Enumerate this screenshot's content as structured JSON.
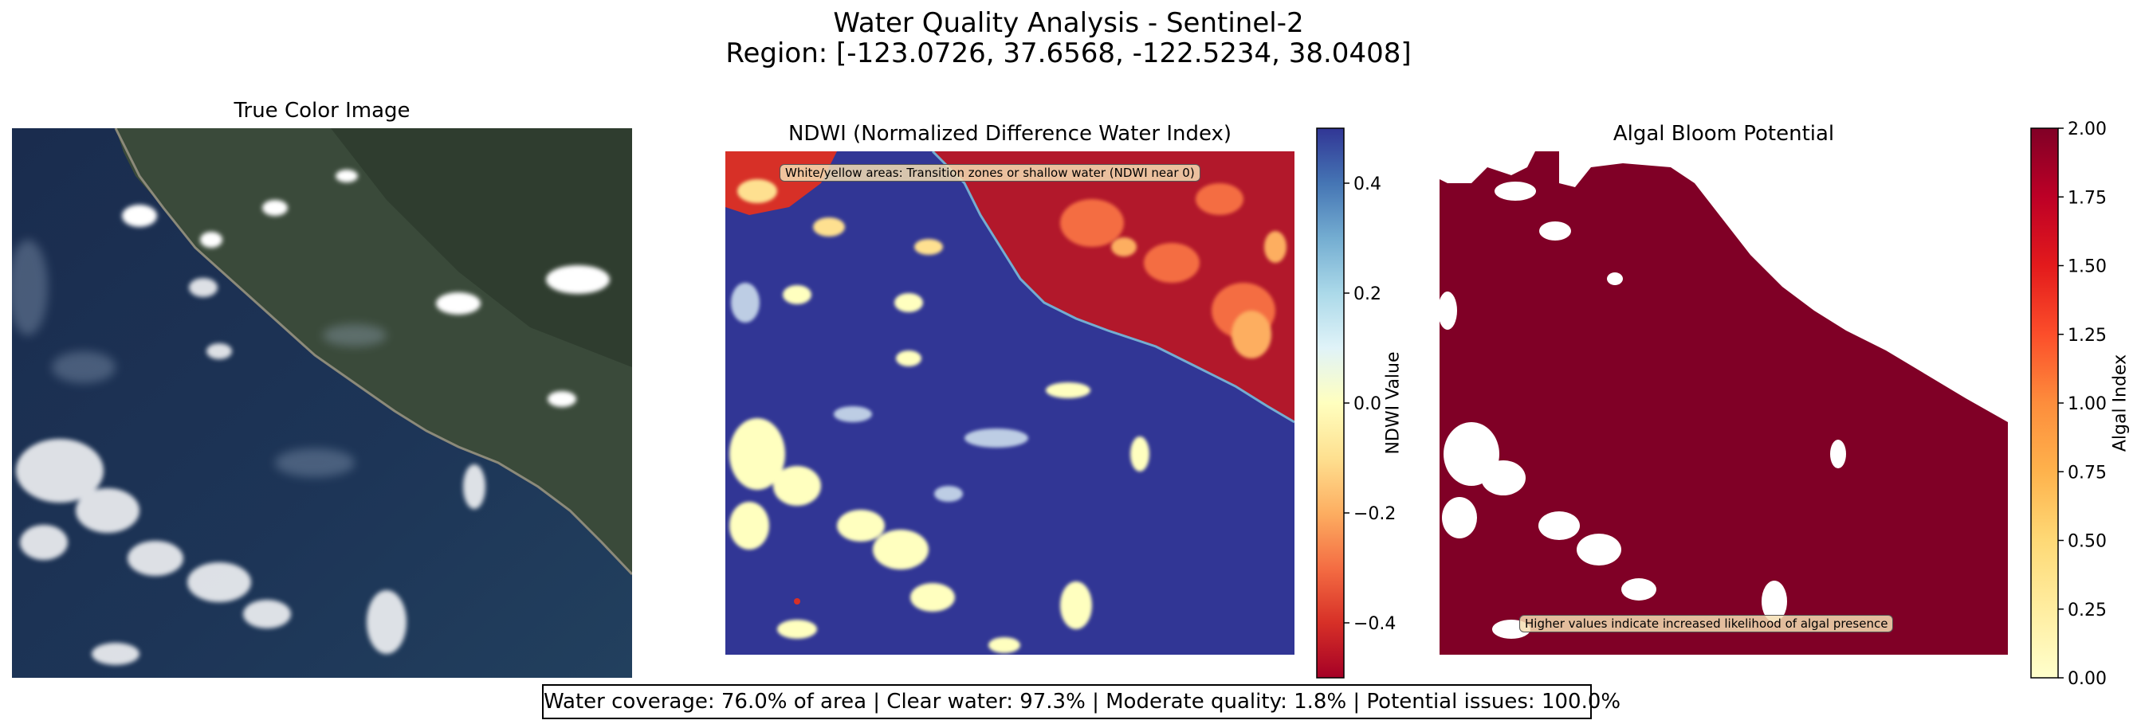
{
  "figure": {
    "title_line1": "Water Quality Analysis - Sentinel-2",
    "title_line2": "Region: [-123.0726, 37.6568, -122.5234, 38.0408]",
    "summary": "Water coverage: 76.0% of area | Clear water: 97.3% | Moderate quality: 1.8% | Potential issues: 100.0%"
  },
  "panels": {
    "true_color": {
      "title": "True Color Image"
    },
    "ndwi": {
      "title": "NDWI (Normalized Difference Water Index)",
      "annotation": "White/yellow areas: Transition zones or shallow water (NDWI near 0)",
      "colorbar_label": "NDWI Value"
    },
    "algal": {
      "title": "Algal Bloom Potential",
      "annotation": "Higher values indicate increased likelihood of algal presence",
      "colorbar_label": "Algal Index"
    }
  },
  "chart_data": [
    {
      "type": "heatmap",
      "title": "True Color Image",
      "description_colors": {
        "ocean": "#1d3557",
        "land": "#3a4a3a",
        "cloud": "#ffffff"
      }
    },
    {
      "type": "heatmap",
      "title": "NDWI (Normalized Difference Water Index)",
      "colormap": "RdYlBu",
      "colorbar": {
        "label": "NDWI Value",
        "range": [
          -0.5,
          0.5
        ],
        "ticks": [
          0.4,
          0.2,
          0.0,
          -0.2,
          -0.4
        ],
        "tick_labels": [
          "0.4",
          "0.2",
          "0.0",
          "−0.2",
          "−0.4"
        ]
      },
      "annotation": "White/yellow areas: Transition zones or shallow water (NDWI near 0)"
    },
    {
      "type": "heatmap",
      "title": "Algal Bloom Potential",
      "colormap": "YlOrRd",
      "colorbar": {
        "label": "Algal Index",
        "range": [
          0.0,
          2.0
        ],
        "ticks": [
          2.0,
          1.75,
          1.5,
          1.25,
          1.0,
          0.75,
          0.5,
          0.25,
          0.0
        ],
        "tick_labels": [
          "2.00",
          "1.75",
          "1.50",
          "1.25",
          "1.00",
          "0.75",
          "0.50",
          "0.25",
          "0.00"
        ]
      },
      "annotation": "Higher values indicate increased likelihood of algal presence"
    }
  ],
  "colors": {
    "water_blue": "#313695",
    "land_red": "#a50026",
    "algal_red": "#800026"
  }
}
